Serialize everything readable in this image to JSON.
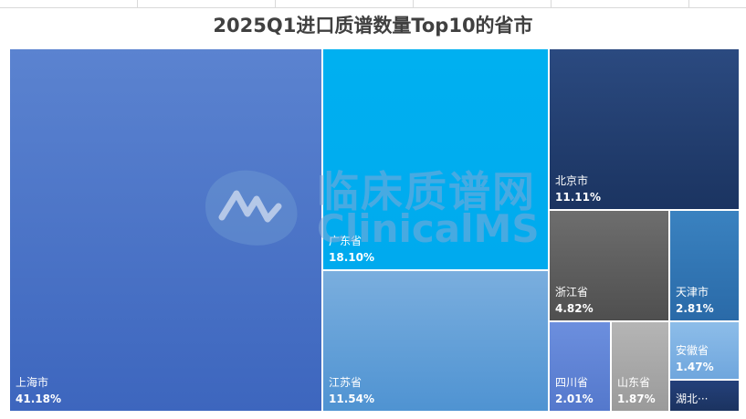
{
  "chart_data": {
    "type": "treemap",
    "title": "2025Q1进口质谱数量Top10的省市",
    "items": [
      {
        "label": "上海市",
        "value": 41.18,
        "display": "41.18%",
        "color": "#4472c4"
      },
      {
        "label": "广东省",
        "value": 18.1,
        "display": "18.10%",
        "color": "#00b0f0"
      },
      {
        "label": "江苏省",
        "value": 11.54,
        "display": "11.54%",
        "color": "#5b9bd5"
      },
      {
        "label": "北京市",
        "value": 11.11,
        "display": "11.11%",
        "color": "#1f3864"
      },
      {
        "label": "浙江省",
        "value": 4.82,
        "display": "4.82%",
        "color": "#595959"
      },
      {
        "label": "天津市",
        "value": 2.81,
        "display": "2.81%",
        "color": "#2e75b6"
      },
      {
        "label": "四川省",
        "value": 2.01,
        "display": "2.01%",
        "color": "#5b7fd6"
      },
      {
        "label": "山东省",
        "value": 1.87,
        "display": "1.87%",
        "color": "#a6a6a6"
      },
      {
        "label": "安徽省",
        "value": 1.47,
        "display": "1.47%",
        "color": "#7fb2e5"
      },
      {
        "label": "湖北···",
        "value": 0.9,
        "display": "",
        "color": "#203864"
      }
    ]
  },
  "watermark": {
    "cn": "临床质谱网",
    "en": "ClinicalMS"
  }
}
